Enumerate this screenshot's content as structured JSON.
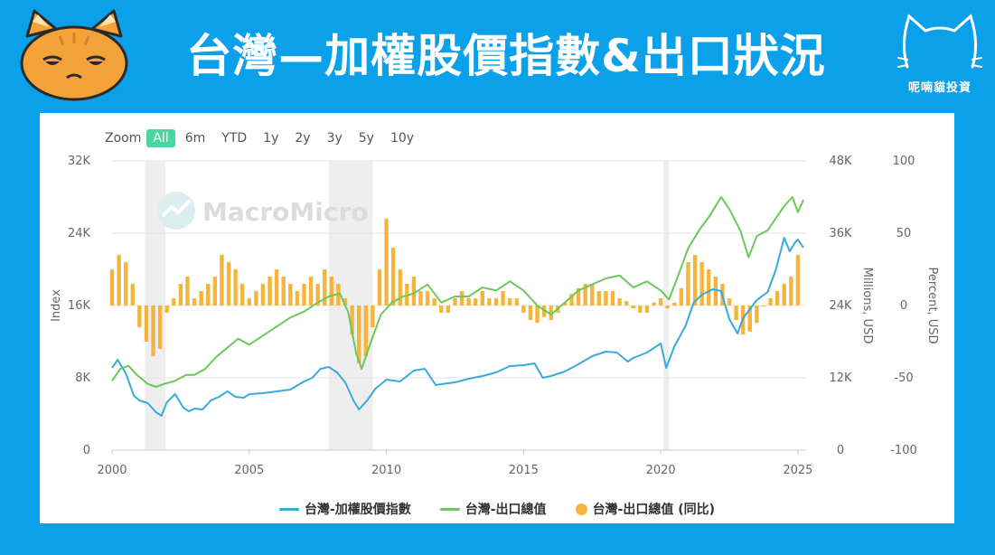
{
  "page": {
    "title": "台灣—加權股價指數&出口狀況",
    "brand_name": "呢喃貓投資"
  },
  "zoom": {
    "label": "Zoom",
    "buttons": [
      "All",
      "6m",
      "YTD",
      "1y",
      "2y",
      "3y",
      "5y",
      "10y"
    ],
    "active": "All"
  },
  "watermark": "MacroMicro",
  "colors": {
    "background": "#0aa0ea",
    "index_line": "#3aa9dc",
    "export_line": "#6cc85a",
    "export_yoy_bar": "#f5b43c",
    "recession_band": "#eeeeee",
    "zoom_active": "#49d6a0"
  },
  "chart_data": {
    "type": "line",
    "title": "",
    "x_axis": {
      "ticks": [
        "2000",
        "2005",
        "2010",
        "2015",
        "2020",
        "2025"
      ],
      "range": [
        2000,
        2025.3
      ]
    },
    "y_axes": [
      {
        "id": "index",
        "label": "Index",
        "ticks": [
          "0",
          "8K",
          "16K",
          "24K",
          "32K"
        ],
        "range": [
          0,
          32000
        ],
        "position": "left"
      },
      {
        "id": "exports",
        "label": "Millions, USD",
        "ticks": [
          "0",
          "12K",
          "24K",
          "36K",
          "48K"
        ],
        "range": [
          0,
          48000
        ],
        "position": "right"
      },
      {
        "id": "yoy",
        "label": "Percent, USD",
        "ticks": [
          "-100",
          "-50",
          "0",
          "50",
          "100"
        ],
        "range": [
          -100,
          100
        ],
        "position": "right-outer"
      }
    ],
    "recession_shading": [
      [
        2001.2,
        2001.95
      ],
      [
        2007.9,
        2009.5
      ],
      [
        2020.1,
        2020.3
      ]
    ],
    "series": [
      {
        "name": "台灣-加權股價指數",
        "type": "line",
        "axis": "index",
        "x": [
          2000.0,
          2000.2,
          2000.5,
          2000.8,
          2001.0,
          2001.3,
          2001.6,
          2001.8,
          2002.0,
          2002.3,
          2002.6,
          2002.8,
          2003.0,
          2003.3,
          2003.6,
          2003.9,
          2004.2,
          2004.5,
          2004.8,
          2005.0,
          2005.5,
          2006.0,
          2006.5,
          2007.0,
          2007.3,
          2007.6,
          2007.9,
          2008.2,
          2008.5,
          2008.8,
          2009.0,
          2009.3,
          2009.6,
          2010.0,
          2010.5,
          2011.0,
          2011.4,
          2011.8,
          2012.0,
          2012.5,
          2013.0,
          2013.5,
          2014.0,
          2014.5,
          2015.0,
          2015.4,
          2015.7,
          2016.0,
          2016.5,
          2017.0,
          2017.5,
          2018.0,
          2018.4,
          2018.8,
          2019.0,
          2019.5,
          2020.0,
          2020.2,
          2020.5,
          2020.9,
          2021.2,
          2021.5,
          2021.9,
          2022.2,
          2022.5,
          2022.8,
          2023.0,
          2023.5,
          2023.9,
          2024.2,
          2024.5,
          2024.7,
          2024.9,
          2025.0,
          2025.2
        ],
        "values": [
          9100,
          10000,
          8500,
          6000,
          5500,
          5200,
          4200,
          3800,
          5300,
          6200,
          4700,
          4300,
          4600,
          4500,
          5500,
          5900,
          6500,
          5900,
          5800,
          6200,
          6300,
          6500,
          6700,
          7600,
          8000,
          9000,
          9200,
          8600,
          7500,
          5500,
          4500,
          5500,
          6800,
          7800,
          7600,
          8800,
          9000,
          7200,
          7300,
          7500,
          7900,
          8200,
          8600,
          9300,
          9400,
          9600,
          8000,
          8200,
          8700,
          9500,
          10400,
          10900,
          10800,
          9800,
          10200,
          10800,
          11800,
          9100,
          11500,
          13700,
          16300,
          17200,
          17800,
          17600,
          14500,
          12900,
          14600,
          16600,
          17500,
          20000,
          23500,
          22000,
          23000,
          23300,
          22400
        ]
      },
      {
        "name": "台灣-出口總值",
        "type": "line",
        "axis": "exports",
        "x": [
          2000.0,
          2000.3,
          2000.6,
          2000.9,
          2001.3,
          2001.6,
          2001.9,
          2002.3,
          2002.7,
          2003.0,
          2003.4,
          2003.8,
          2004.2,
          2004.6,
          2005.0,
          2005.5,
          2006.0,
          2006.5,
          2007.0,
          2007.5,
          2007.9,
          2008.3,
          2008.6,
          2008.9,
          2009.1,
          2009.4,
          2009.8,
          2010.2,
          2010.6,
          2011.0,
          2011.5,
          2012.0,
          2012.5,
          2013.0,
          2013.5,
          2014.0,
          2014.5,
          2015.0,
          2015.5,
          2016.0,
          2016.5,
          2017.0,
          2017.5,
          2018.0,
          2018.5,
          2019.0,
          2019.5,
          2020.0,
          2020.3,
          2020.6,
          2021.0,
          2021.4,
          2021.8,
          2022.2,
          2022.5,
          2022.9,
          2023.2,
          2023.5,
          2023.9,
          2024.2,
          2024.5,
          2024.8,
          2025.0,
          2025.2
        ],
        "values": [
          11500,
          13500,
          14000,
          12500,
          11000,
          10500,
          11000,
          11500,
          12500,
          12500,
          13500,
          15500,
          17000,
          18500,
          17500,
          19000,
          20500,
          22000,
          23000,
          24500,
          25500,
          26000,
          23000,
          16000,
          13500,
          17500,
          22500,
          24500,
          25500,
          26000,
          27500,
          24500,
          25500,
          25500,
          27000,
          26500,
          28000,
          26500,
          24000,
          22500,
          24500,
          26500,
          27500,
          28500,
          29000,
          27000,
          28000,
          26500,
          25000,
          28500,
          33500,
          36500,
          39000,
          42000,
          40000,
          36500,
          32000,
          35500,
          36500,
          38500,
          40500,
          42000,
          39500,
          41500
        ]
      },
      {
        "name": "台灣-出口總值 (同比)",
        "type": "bar",
        "axis": "yoy",
        "x": [
          2000.0,
          2000.25,
          2000.5,
          2000.75,
          2001.0,
          2001.25,
          2001.5,
          2001.75,
          2002.0,
          2002.25,
          2002.5,
          2002.75,
          2003.0,
          2003.25,
          2003.5,
          2003.75,
          2004.0,
          2004.25,
          2004.5,
          2004.75,
          2005.0,
          2005.25,
          2005.5,
          2005.75,
          2006.0,
          2006.25,
          2006.5,
          2006.75,
          2007.0,
          2007.25,
          2007.5,
          2007.75,
          2008.0,
          2008.25,
          2008.5,
          2008.75,
          2009.0,
          2009.25,
          2009.5,
          2009.75,
          2010.0,
          2010.25,
          2010.5,
          2010.75,
          2011.0,
          2011.25,
          2011.5,
          2011.75,
          2012.0,
          2012.25,
          2012.5,
          2012.75,
          2013.0,
          2013.25,
          2013.5,
          2013.75,
          2014.0,
          2014.25,
          2014.5,
          2014.75,
          2015.0,
          2015.25,
          2015.5,
          2015.75,
          2016.0,
          2016.25,
          2016.5,
          2016.75,
          2017.0,
          2017.25,
          2017.5,
          2017.75,
          2018.0,
          2018.25,
          2018.5,
          2018.75,
          2019.0,
          2019.25,
          2019.5,
          2019.75,
          2020.0,
          2020.25,
          2020.5,
          2020.75,
          2021.0,
          2021.25,
          2021.5,
          2021.75,
          2022.0,
          2022.25,
          2022.5,
          2022.75,
          2023.0,
          2023.25,
          2023.5,
          2023.75,
          2024.0,
          2024.25,
          2024.5,
          2024.75,
          2025.0
        ],
        "values": [
          25,
          35,
          30,
          15,
          -15,
          -25,
          -35,
          -30,
          -5,
          5,
          15,
          20,
          5,
          10,
          15,
          20,
          35,
          30,
          25,
          15,
          5,
          10,
          15,
          20,
          25,
          20,
          15,
          10,
          15,
          20,
          15,
          25,
          20,
          15,
          5,
          -20,
          -40,
          -35,
          -15,
          25,
          60,
          40,
          25,
          15,
          20,
          10,
          10,
          5,
          -5,
          -5,
          5,
          10,
          5,
          5,
          10,
          5,
          5,
          10,
          5,
          5,
          -5,
          -10,
          -12,
          -8,
          -10,
          -5,
          2,
          8,
          12,
          15,
          15,
          10,
          10,
          10,
          5,
          3,
          -2,
          -5,
          -5,
          2,
          5,
          -2,
          2,
          12,
          30,
          35,
          30,
          25,
          20,
          15,
          5,
          -10,
          -20,
          -18,
          -12,
          0,
          5,
          10,
          15,
          20,
          35
        ]
      }
    ],
    "legend": {
      "position": "bottom",
      "entries": [
        "台灣-加權股價指數",
        "台灣-出口總值",
        "台灣-出口總值 (同比)"
      ]
    },
    "grid": true
  }
}
